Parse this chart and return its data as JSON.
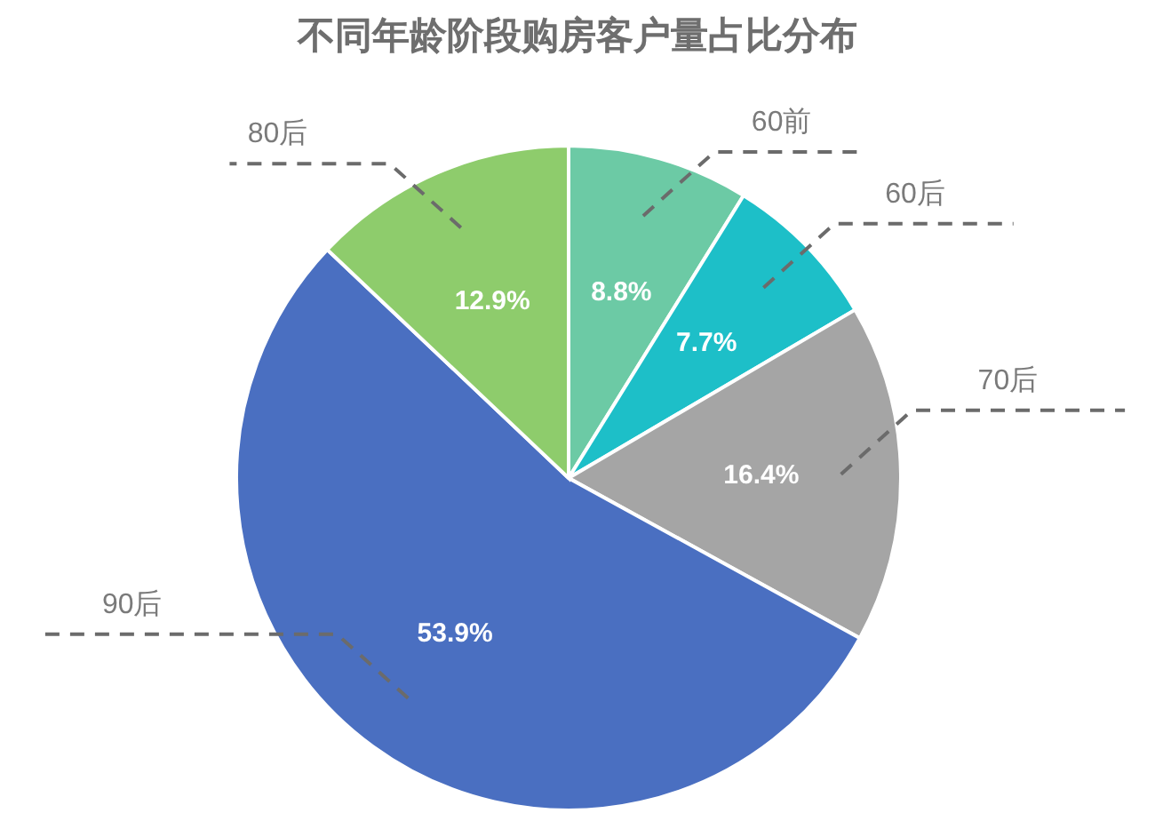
{
  "chart_data": {
    "type": "pie",
    "title": "不同年龄阶段购房客户量占比分布",
    "categories": [
      "60前",
      "60后",
      "70后",
      "90后",
      "80后"
    ],
    "values": [
      8.8,
      7.7,
      16.4,
      53.9,
      12.9
    ],
    "colors": [
      "#6ccaa5",
      "#1dbfc8",
      "#a5a5a5",
      "#4a6fc1",
      "#8ecc6c"
    ],
    "value_labels": [
      "8.8%",
      "7.7%",
      "16.4%",
      "53.9%",
      "12.9%"
    ]
  }
}
